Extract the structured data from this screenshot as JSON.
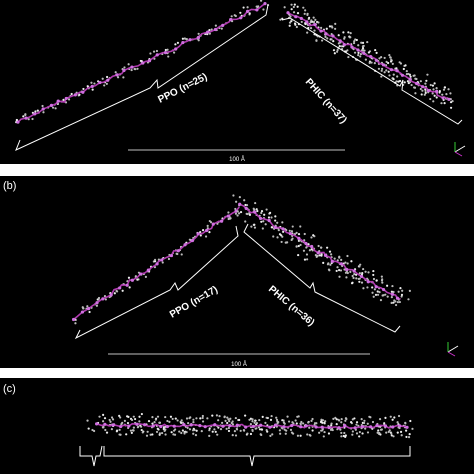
{
  "panels": [
    {
      "labels": [
        "PPO (n=25)",
        "PHIC (n=37)"
      ],
      "scale_label": "100 Å"
    },
    {
      "tag": "(b)",
      "labels": [
        "PPO (n=17)",
        "PHIC (n=36)"
      ],
      "scale_label": "100 Å"
    },
    {
      "tag": "(c)"
    }
  ]
}
